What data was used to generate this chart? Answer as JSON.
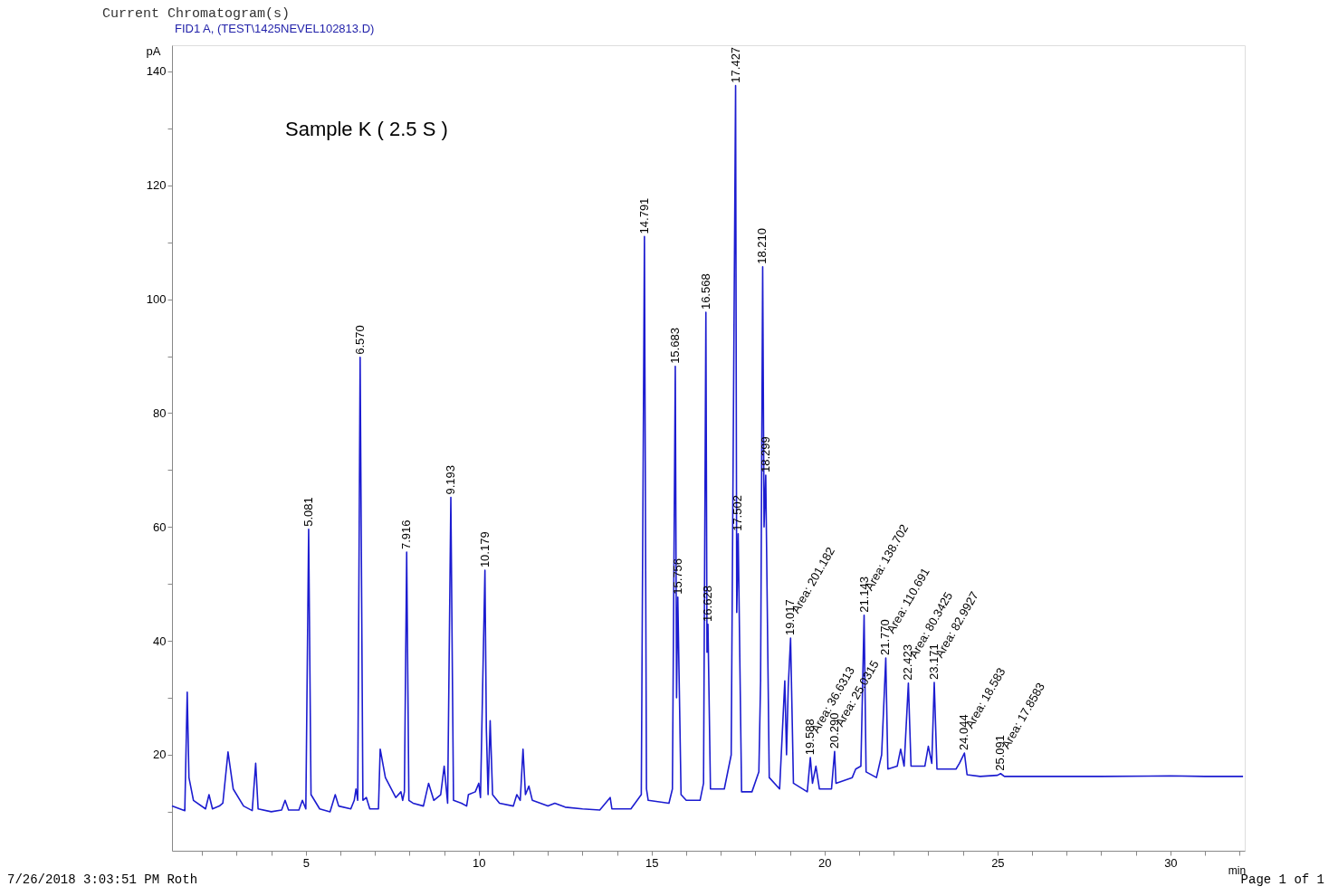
{
  "chart_data": {
    "type": "line",
    "title": "Current Chromatogram(s)",
    "subtitle": "FID1 A,  (TEST\\1425NEVEL102813.D)",
    "xlabel": "min",
    "ylabel": "pA",
    "xlim": [
      1.13,
      32.15
    ],
    "ylim": [
      3.15,
      144.6
    ],
    "xticks": [
      {
        "value": 2,
        "label": null
      },
      {
        "value": 3,
        "label": null
      },
      {
        "value": 4,
        "label": null
      },
      5,
      {
        "value": 6,
        "label": null
      },
      {
        "value": 7,
        "label": null
      },
      {
        "value": 8,
        "label": null
      },
      {
        "value": 9,
        "label": null
      },
      10,
      {
        "value": 11,
        "label": null
      },
      {
        "value": 12,
        "label": null
      },
      {
        "value": 13,
        "label": null
      },
      {
        "value": 14,
        "label": null
      },
      15,
      {
        "value": 16,
        "label": null
      },
      {
        "value": 17,
        "label": null
      },
      {
        "value": 18,
        "label": null
      },
      {
        "value": 19,
        "label": null
      },
      20,
      {
        "value": 21,
        "label": null
      },
      {
        "value": 22,
        "label": null
      },
      {
        "value": 23,
        "label": null
      },
      {
        "value": 24,
        "label": null
      },
      25,
      {
        "value": 26,
        "label": null
      },
      {
        "value": 27,
        "label": null
      },
      {
        "value": 28,
        "label": null
      },
      {
        "value": 29,
        "label": null
      },
      30,
      {
        "value": 31,
        "label": null
      },
      {
        "value": 32,
        "label": null
      }
    ],
    "yticks": [
      {
        "value": 10,
        "label": null
      },
      20,
      {
        "value": 30,
        "label": null
      },
      40,
      {
        "value": 50,
        "label": null
      },
      60,
      {
        "value": 70,
        "label": null
      },
      80,
      {
        "value": 90,
        "label": null
      },
      100,
      {
        "value": 110,
        "label": null
      },
      120,
      {
        "value": 130,
        "label": null
      },
      140
    ],
    "grid": false,
    "marker": "none",
    "line_style": "solid",
    "series": [
      {
        "color": "#1c1cd0",
        "x": [
          1.13,
          1.5,
          1.57,
          1.62,
          1.75,
          2.1,
          2.2,
          2.3,
          2.5,
          2.6,
          2.75,
          2.9,
          3.2,
          3.45,
          3.55,
          3.62,
          4.0,
          4.3,
          4.4,
          4.5,
          4.8,
          4.9,
          5.0,
          5.081,
          5.15,
          5.4,
          5.7,
          5.85,
          5.95,
          6.3,
          6.4,
          6.45,
          6.5,
          6.57,
          6.65,
          6.75,
          6.85,
          7.1,
          7.15,
          7.3,
          7.6,
          7.75,
          7.8,
          7.85,
          7.916,
          7.98,
          8.1,
          8.4,
          8.55,
          8.7,
          8.9,
          9.0,
          9.1,
          9.193,
          9.27,
          9.5,
          9.65,
          9.7,
          9.9,
          10.0,
          10.05,
          10.179,
          10.22,
          10.27,
          10.33,
          10.4,
          10.6,
          11.0,
          11.1,
          11.2,
          11.28,
          11.35,
          11.45,
          11.55,
          12.0,
          12.2,
          12.5,
          13.0,
          13.5,
          13.8,
          13.85,
          14.4,
          14.7,
          14.791,
          14.85,
          14.9,
          15.5,
          15.6,
          15.683,
          15.72,
          15.756,
          15.85,
          16.0,
          16.4,
          16.5,
          16.568,
          16.6,
          16.628,
          16.7,
          17.1,
          17.3,
          17.427,
          17.46,
          17.502,
          17.6,
          17.9,
          18.1,
          18.15,
          18.21,
          18.25,
          18.299,
          18.4,
          18.7,
          18.85,
          18.9,
          18.95,
          19.017,
          19.1,
          19.5,
          19.588,
          19.65,
          19.75,
          19.85,
          20.2,
          20.29,
          20.33,
          20.8,
          20.9,
          21.05,
          21.143,
          21.2,
          21.5,
          21.65,
          21.77,
          21.83,
          22.1,
          22.2,
          22.3,
          22.423,
          22.5,
          22.9,
          23.0,
          23.1,
          23.171,
          23.25,
          23.8,
          23.9,
          24.044,
          24.12,
          24.5,
          25.0,
          25.091,
          25.2,
          26,
          28,
          30,
          31,
          32.1
        ],
        "values": [
          11,
          10.2,
          31,
          16,
          12,
          10.5,
          13,
          10.5,
          11,
          11.5,
          20.5,
          14,
          11,
          10.2,
          18.5,
          10.5,
          10,
          10.3,
          12,
          10.3,
          10.3,
          12,
          10.5,
          59.6,
          13,
          10.5,
          10,
          13,
          11,
          10.5,
          12,
          14,
          12,
          89.8,
          12,
          12.5,
          10.5,
          10.5,
          21,
          16,
          12.5,
          13.5,
          12,
          13.5,
          55.6,
          12,
          11.5,
          11,
          15,
          12,
          13,
          18,
          11.5,
          65.2,
          12,
          11.5,
          11,
          13,
          13.5,
          15,
          12.5,
          52.4,
          24.5,
          13,
          26,
          13,
          11.5,
          11,
          13,
          12,
          21,
          13,
          14.5,
          12,
          11,
          11.5,
          10.8,
          10.5,
          10.3,
          12.5,
          10.5,
          10.5,
          13,
          111,
          14,
          12,
          11.5,
          14,
          88.2,
          30,
          47.7,
          13,
          12,
          12,
          15,
          97.7,
          38,
          42.9,
          14,
          14,
          20,
          137.5,
          45,
          58.8,
          13.5,
          13.5,
          17,
          33,
          105.7,
          60,
          69.1,
          16,
          14,
          33,
          20,
          32,
          40.5,
          15,
          13.5,
          19.5,
          15,
          18,
          14,
          14,
          20.6,
          15,
          16,
          17.5,
          18,
          44.5,
          17,
          16,
          20,
          37,
          17.5,
          18,
          21,
          18,
          32.6,
          18,
          18,
          21.5,
          18.5,
          32.7,
          17.5,
          17.5,
          18.5,
          20.3,
          16.5,
          16.2,
          16.4,
          16.7,
          16.2,
          16.2,
          16.2,
          16.3,
          16.2,
          16.2
        ]
      }
    ],
    "annotations": [
      "Sample K ( 2.5 S )",
      "7/26/2018 3:03:51 PM Roth",
      "Page    1 of 1",
      {
        "text": "5.081",
        "x": 5.081,
        "y": 59.6
      },
      {
        "text": "6.570",
        "x": 6.57,
        "y": 89.8
      },
      {
        "text": "7.916",
        "x": 7.916,
        "y": 55.6
      },
      {
        "text": "9.193",
        "x": 9.193,
        "y": 65.2
      },
      {
        "text": "10.179",
        "x": 10.179,
        "y": 52.4
      },
      {
        "text": "14.791",
        "x": 14.791,
        "y": 111
      },
      {
        "text": "15.683",
        "x": 15.683,
        "y": 88.2
      },
      {
        "text": "15.756",
        "x": 15.756,
        "y": 47.7
      },
      {
        "text": "16.568",
        "x": 16.568,
        "y": 97.7
      },
      {
        "text": "16.628",
        "x": 16.628,
        "y": 42.9
      },
      {
        "text": "17.427",
        "x": 17.427,
        "y": 137.5
      },
      {
        "text": "17.502",
        "x": 17.502,
        "y": 58.8
      },
      {
        "text": "18.210",
        "x": 18.21,
        "y": 105.7
      },
      {
        "text": "18.299",
        "x": 18.299,
        "y": 69.1
      },
      {
        "text": "19.017",
        "x": 19.017,
        "y": 40.5
      },
      {
        "text": "Area: 201.182",
        "x": 19.017,
        "y": 40.5
      },
      {
        "text": "19.588",
        "x": 19.588,
        "y": 19.5
      },
      {
        "text": "Area: 36.6313",
        "x": 19.588,
        "y": 19.5
      },
      {
        "text": "20.290",
        "x": 20.29,
        "y": 20.6
      },
      {
        "text": "Area: 25.0315",
        "x": 20.29,
        "y": 20.6
      },
      {
        "text": "21.143",
        "x": 21.143,
        "y": 44.5
      },
      {
        "text": "Area: 138.702",
        "x": 21.143,
        "y": 44.5
      },
      {
        "text": "21.770",
        "x": 21.77,
        "y": 37
      },
      {
        "text": "Area: 110.691",
        "x": 21.77,
        "y": 37
      },
      {
        "text": "22.423",
        "x": 22.423,
        "y": 32.6
      },
      {
        "text": "Area: 80.3425",
        "x": 22.423,
        "y": 32.6
      },
      {
        "text": "23.171",
        "x": 23.171,
        "y": 32.7
      },
      {
        "text": "Area: 82.9927",
        "x": 23.171,
        "y": 32.7
      },
      {
        "text": "24.044",
        "x": 24.044,
        "y": 20.3
      },
      {
        "text": "Area: 18.583",
        "x": 24.044,
        "y": 20.3
      },
      {
        "text": "25.091",
        "x": 25.091,
        "y": 16.7
      },
      {
        "text": "Area: 17.8583",
        "x": 25.091,
        "y": 16.7
      }
    ]
  }
}
